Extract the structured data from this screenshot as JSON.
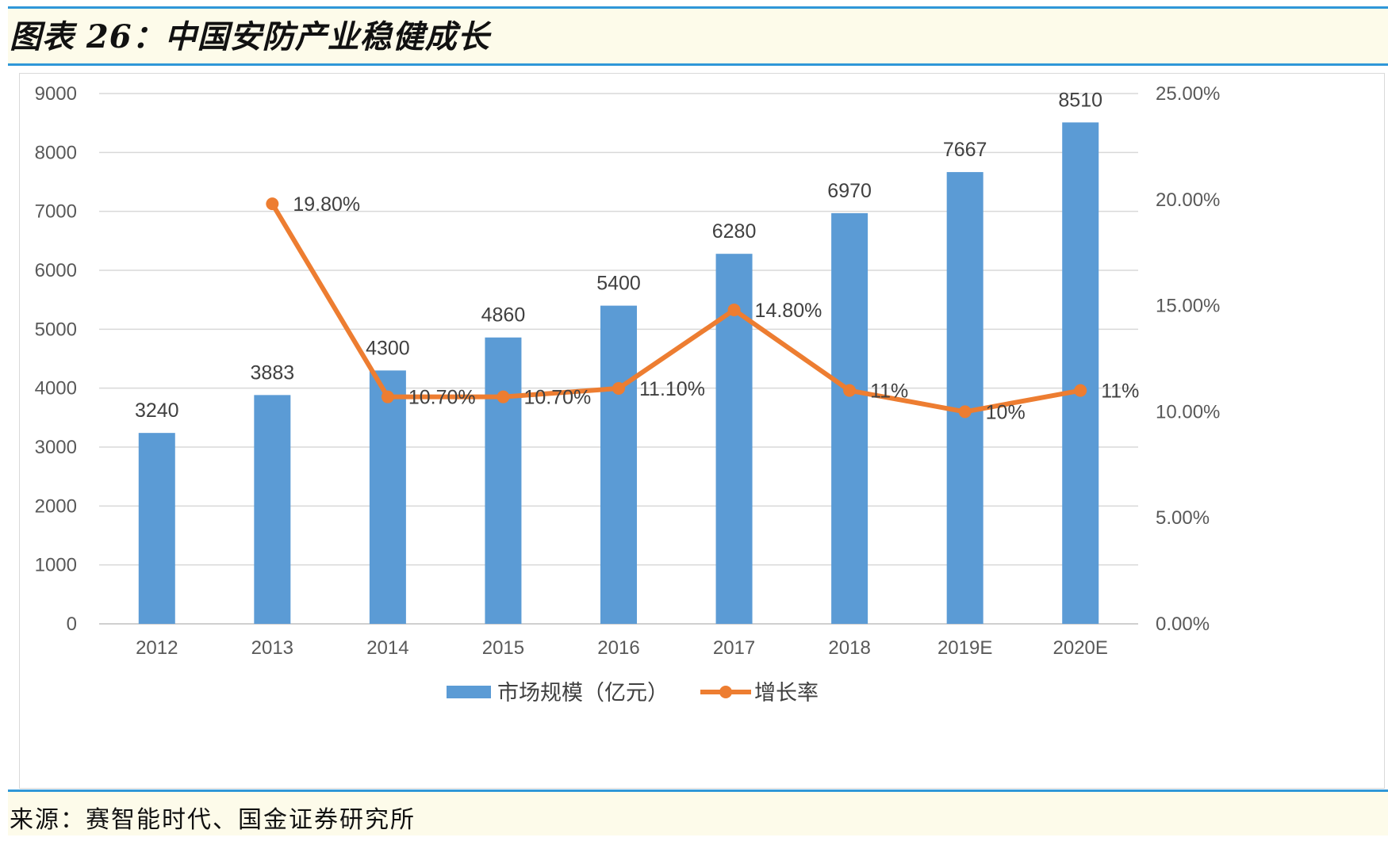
{
  "header": {
    "title": "图表 26：中国安防产业稳健成长"
  },
  "footer": {
    "source": "来源：赛智能时代、国金证券研究所"
  },
  "colors": {
    "accent": "#2f97d8",
    "bar": "#5b9bd5",
    "line": "#ed7d31",
    "band": "#fdfbea"
  },
  "chart_data": {
    "type": "bar",
    "categories": [
      "2012",
      "2013",
      "2014",
      "2015",
      "2016",
      "2017",
      "2018",
      "2019E",
      "2020E"
    ],
    "series": [
      {
        "name": "市场规模（亿元）",
        "type": "bar",
        "axis": "left",
        "values": [
          3240,
          3883,
          4300,
          4860,
          5400,
          6280,
          6970,
          7667,
          8510
        ],
        "labels": [
          "3240",
          "3883",
          "4300",
          "4860",
          "5400",
          "6280",
          "6970",
          "7667",
          "8510"
        ]
      },
      {
        "name": "增长率",
        "type": "line",
        "axis": "right",
        "values": [
          null,
          19.8,
          10.7,
          10.7,
          11.1,
          14.8,
          11,
          10,
          11
        ],
        "labels": [
          null,
          "19.80%",
          "10.70%",
          "10.70%",
          "11.10%",
          "14.80%",
          "11%",
          "10%",
          "11%"
        ]
      }
    ],
    "y_left": {
      "min": 0,
      "max": 9000,
      "ticks": [
        0,
        1000,
        2000,
        3000,
        4000,
        5000,
        6000,
        7000,
        8000,
        9000
      ],
      "tick_labels": [
        "0",
        "1000",
        "2000",
        "3000",
        "4000",
        "5000",
        "6000",
        "7000",
        "8000",
        "9000"
      ]
    },
    "y_right": {
      "min": 0,
      "max": 25,
      "ticks": [
        0,
        5,
        10,
        15,
        20,
        25
      ],
      "tick_labels": [
        "0.00%",
        "5.00%",
        "10.00%",
        "15.00%",
        "20.00%",
        "25.00%"
      ]
    },
    "grid": true,
    "legend": "bottom-center",
    "title": "",
    "xlabel": "",
    "ylabel": ""
  }
}
